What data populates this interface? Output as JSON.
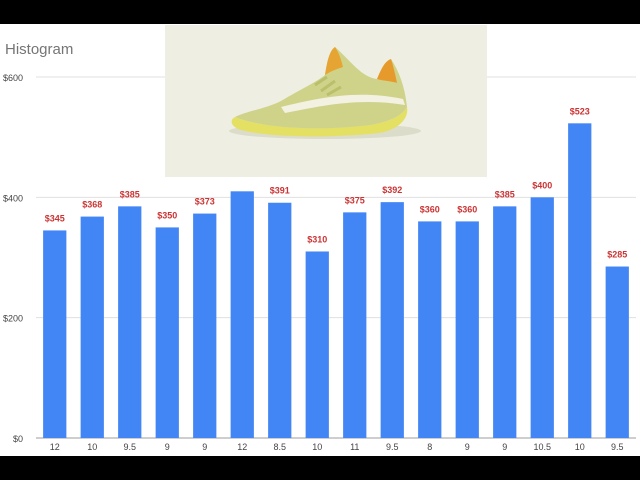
{
  "chart_data": {
    "type": "bar",
    "title": "Histogram",
    "xlabel": "",
    "ylabel": "",
    "categories": [
      "12",
      "10",
      "9.5",
      "9",
      "9",
      "12",
      "8.5",
      "10",
      "11",
      "9.5",
      "8",
      "9",
      "9",
      "10.5",
      "10",
      "9.5"
    ],
    "values": [
      345,
      368,
      385,
      350,
      373,
      410,
      391,
      310,
      375,
      392,
      360,
      360,
      385,
      400,
      523,
      285
    ],
    "data_labels": [
      "$345",
      "$368",
      "$385",
      "$350",
      "$373",
      "",
      "$391",
      "$310",
      "$375",
      "$392",
      "$360",
      "$360",
      "$385",
      "$400",
      "$523",
      "$285"
    ],
    "yticks": [
      0,
      200,
      400,
      600
    ],
    "ytick_labels": [
      "$0",
      "$200",
      "$400",
      "$600"
    ],
    "ylim": [
      0,
      600
    ],
    "grid": true,
    "legend": "none",
    "colors": {
      "bar": "#4285f4",
      "data_label": "#cc3333",
      "gridline": "#e0e0e0",
      "axis_text": "#444444",
      "title": "#757575"
    }
  },
  "image": {
    "icon": "yellow-sneaker-product-photo",
    "background": "#efeee2"
  }
}
